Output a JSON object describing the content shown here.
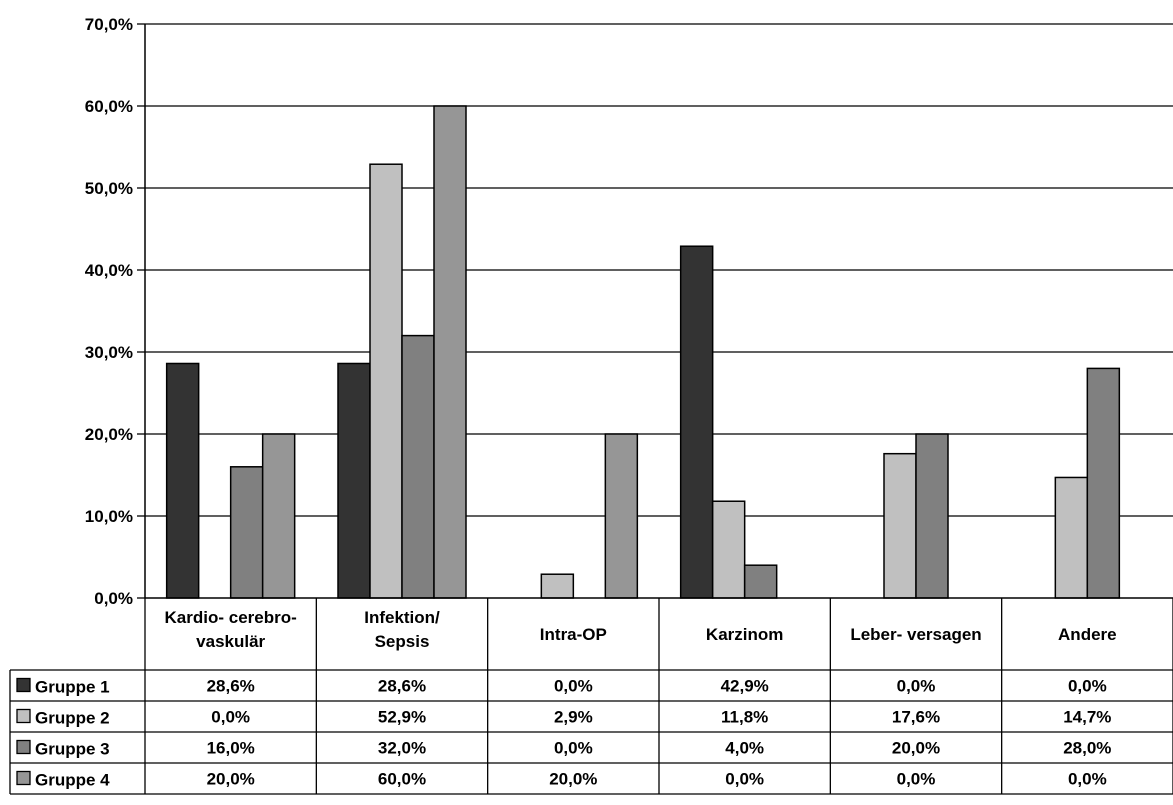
{
  "chart_data": {
    "type": "bar",
    "categories": [
      [
        "Kardio- cerebro-",
        "vaskulär"
      ],
      [
        "Infektion/",
        "Sepsis"
      ],
      [
        "Intra-OP"
      ],
      [
        "Karzinom"
      ],
      [
        "Leber- versagen"
      ],
      [
        "Andere"
      ]
    ],
    "series": [
      {
        "name": "Gruppe 1",
        "color": "#333333",
        "values": [
          28.6,
          28.6,
          0.0,
          42.9,
          0.0,
          0.0
        ],
        "labels": [
          "28,6%",
          "28,6%",
          "0,0%",
          "42,9%",
          "0,0%",
          "0,0%"
        ]
      },
      {
        "name": "Gruppe 2",
        "color": "#c0c0c0",
        "values": [
          0.0,
          52.9,
          2.9,
          11.8,
          17.6,
          14.7
        ],
        "labels": [
          "0,0%",
          "52,9%",
          "2,9%",
          "11,8%",
          "17,6%",
          "14,7%"
        ]
      },
      {
        "name": "Gruppe 3",
        "color": "#808080",
        "values": [
          16.0,
          32.0,
          0.0,
          4.0,
          20.0,
          28.0
        ],
        "labels": [
          "16,0%",
          "32,0%",
          "0,0%",
          "4,0%",
          "20,0%",
          "28,0%"
        ]
      },
      {
        "name": "Gruppe 4",
        "color": "#969696",
        "values": [
          20.0,
          60.0,
          20.0,
          0.0,
          0.0,
          0.0
        ],
        "labels": [
          "20,0%",
          "60,0%",
          "20,0%",
          "0,0%",
          "0,0%",
          "0,0%"
        ]
      }
    ],
    "ylim": [
      0,
      70
    ],
    "yticks": [
      0,
      10,
      20,
      30,
      40,
      50,
      60,
      70
    ],
    "ytick_labels": [
      "0,0%",
      "10,0%",
      "20,0%",
      "30,0%",
      "40,0%",
      "50,0%",
      "60,0%",
      "70,0%"
    ],
    "grid": true,
    "legend": "data-table-left",
    "title": "",
    "xlabel": "",
    "ylabel": ""
  }
}
